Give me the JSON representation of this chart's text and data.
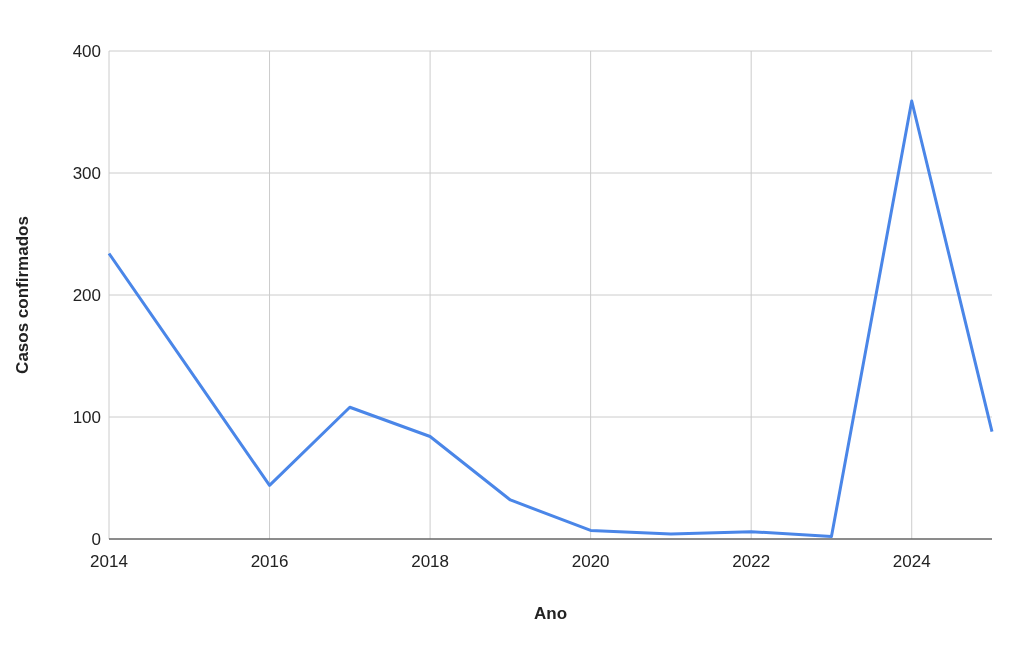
{
  "chart_data": {
    "type": "line",
    "xlabel": "Ano",
    "ylabel": "Casos confirmados",
    "x": [
      2014,
      2015,
      2016,
      2017,
      2018,
      2019,
      2020,
      2021,
      2022,
      2023,
      2024,
      2025
    ],
    "series": [
      {
        "color": "#4a86e8",
        "values": [
          234,
          139,
          44,
          108,
          84,
          32,
          7,
          4,
          6,
          2,
          359,
          88
        ]
      }
    ],
    "xlim": [
      2014,
      2025
    ],
    "xticks": [
      2014,
      2016,
      2018,
      2020,
      2022,
      2024
    ],
    "ylim": [
      0,
      400
    ],
    "yticks": [
      0,
      100,
      200,
      300,
      400
    ],
    "grid": true,
    "line_style": "solid"
  }
}
